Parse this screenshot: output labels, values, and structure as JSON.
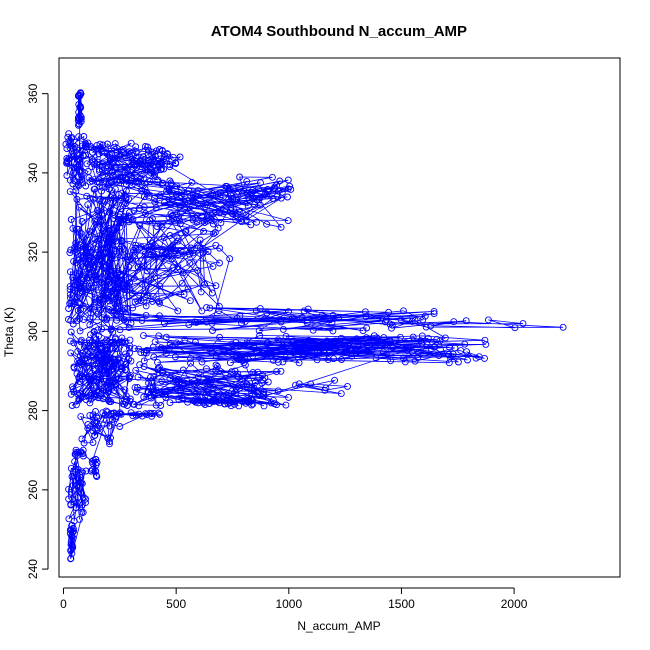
{
  "chart_data": {
    "type": "scatter",
    "title": "ATOM4 Southbound N_accum_AMP",
    "xlabel": "N_accum_AMP",
    "ylabel": "Theta (K)",
    "xlim": [
      -20,
      2470
    ],
    "ylim": [
      238,
      369
    ],
    "x_ticks": [
      0,
      500,
      1000,
      1500,
      2000
    ],
    "y_ticks": [
      240,
      260,
      280,
      300,
      320,
      340,
      360
    ],
    "grid": false,
    "legend": "none",
    "marker": "open-circle",
    "connect_points": true,
    "series_color": "#0000ff",
    "clusters": [
      {
        "x_min": 65,
        "x_max": 80,
        "theta_min": 352,
        "theta_max": 360.5,
        "count": 25
      },
      {
        "x_min": 10,
        "x_max": 110,
        "theta_min": 336,
        "theta_max": 350,
        "count": 50
      },
      {
        "x_min": 80,
        "x_max": 450,
        "theta_min": 336,
        "theta_max": 347.5,
        "count": 90
      },
      {
        "x_min": 300,
        "x_max": 520,
        "theta_min": 340,
        "theta_max": 346,
        "count": 25
      },
      {
        "x_min": 200,
        "x_max": 1000,
        "theta_min": 326,
        "theta_max": 339,
        "count": 100
      },
      {
        "x_min": 700,
        "x_max": 1010,
        "theta_min": 333,
        "theta_max": 337,
        "count": 25
      },
      {
        "x_min": 20,
        "x_max": 300,
        "theta_min": 300,
        "theta_max": 336,
        "count": 180
      },
      {
        "x_min": 200,
        "x_max": 700,
        "theta_min": 305,
        "theta_max": 330,
        "count": 90
      },
      {
        "x_min": 300,
        "x_max": 750,
        "theta_min": 318,
        "theta_max": 322,
        "count": 20
      },
      {
        "x_min": 50,
        "x_max": 1650,
        "theta_min": 300,
        "theta_max": 306,
        "count": 60
      },
      {
        "x_min": 1300,
        "x_max": 2400,
        "theta_min": 300.5,
        "theta_max": 303,
        "count": 12
      },
      {
        "x_min": 300,
        "x_max": 1880,
        "theta_min": 292,
        "theta_max": 299,
        "count": 120
      },
      {
        "x_min": 1000,
        "x_max": 1300,
        "theta_min": 295,
        "theta_max": 297,
        "count": 25
      },
      {
        "x_min": 1500,
        "x_max": 1890,
        "theta_min": 292,
        "theta_max": 296,
        "count": 10
      },
      {
        "x_min": 300,
        "x_max": 1000,
        "theta_min": 281,
        "theta_max": 292,
        "count": 110
      },
      {
        "x_min": 550,
        "x_max": 850,
        "theta_min": 281.5,
        "theta_max": 283,
        "count": 25
      },
      {
        "x_min": 1000,
        "x_max": 1300,
        "theta_min": 284,
        "theta_max": 288,
        "count": 8
      },
      {
        "x_min": 30,
        "x_max": 300,
        "theta_min": 280,
        "theta_max": 300,
        "count": 150
      },
      {
        "x_min": 200,
        "x_max": 450,
        "theta_min": 278.5,
        "theta_max": 279.5,
        "count": 20
      },
      {
        "x_min": 70,
        "x_max": 250,
        "theta_min": 271,
        "theta_max": 280,
        "count": 30
      },
      {
        "x_min": 120,
        "x_max": 150,
        "theta_min": 263,
        "theta_max": 268,
        "count": 14
      },
      {
        "x_min": 50,
        "x_max": 90,
        "theta_min": 268.5,
        "theta_max": 270,
        "count": 10
      },
      {
        "x_min": 20,
        "x_max": 100,
        "theta_min": 252,
        "theta_max": 270,
        "count": 35
      },
      {
        "x_min": 30,
        "x_max": 45,
        "theta_min": 242,
        "theta_max": 252,
        "count": 25
      }
    ]
  }
}
